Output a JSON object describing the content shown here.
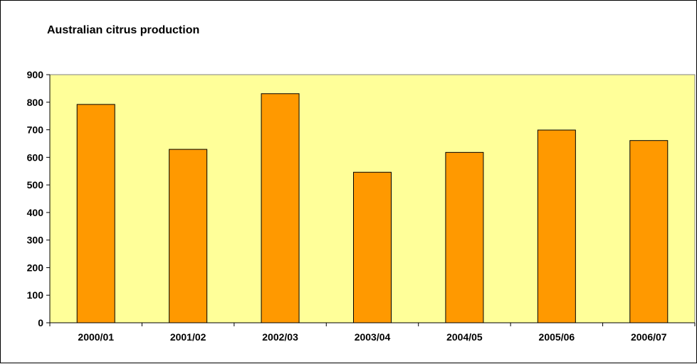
{
  "chart_data": {
    "type": "bar",
    "title": "Australian citrus production",
    "xlabel": "",
    "ylabel": "",
    "categories": [
      "2000/01",
      "2001/02",
      "2002/03",
      "2003/04",
      "2004/05",
      "2005/06",
      "2006/07"
    ],
    "values": [
      792,
      629,
      831,
      546,
      618,
      699,
      661
    ],
    "ylim": [
      0,
      900
    ],
    "yticks": [
      "0",
      "100",
      "200",
      "300",
      "400",
      "500",
      "600",
      "700",
      "800",
      "900"
    ],
    "grid": false,
    "legend": "none",
    "colors": {
      "bar": "#FF9900",
      "plot_background": "#FFFF99",
      "bar_outline": "#000000"
    }
  }
}
